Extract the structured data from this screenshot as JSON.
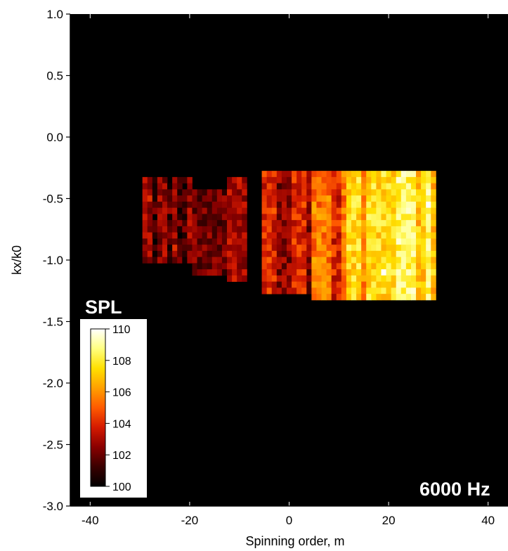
{
  "chart_data": {
    "type": "heatmap",
    "title": "",
    "xlabel": "Spinning order, m",
    "ylabel": "kx/k0",
    "xlim": [
      -44,
      44
    ],
    "ylim": [
      -3.0,
      1.0
    ],
    "x_ticks": [
      "-40",
      "-20",
      "0",
      "20",
      "40"
    ],
    "x_tick_values": [
      -40,
      -20,
      0,
      20,
      40
    ],
    "y_ticks": [
      "1.0",
      "0.5",
      "0.0",
      "-0.5",
      "-1.0",
      "-1.5",
      "-2.0",
      "-2.5",
      "-3.0"
    ],
    "y_tick_values": [
      1.0,
      0.5,
      0.0,
      -0.5,
      -1.0,
      -1.5,
      -2.0,
      -2.5,
      -3.0
    ],
    "annotation": "6000 Hz",
    "colorbar": {
      "title": "SPL",
      "min": 100,
      "max": 110,
      "ticks": [
        "110",
        "108",
        "106",
        "104",
        "102",
        "100"
      ],
      "tick_values": [
        110,
        108,
        106,
        104,
        102,
        100
      ],
      "colormap": [
        "#000000",
        "#3a0000",
        "#8a0000",
        "#d41a00",
        "#ff5a00",
        "#ffa000",
        "#ffe000",
        "#ffff80",
        "#ffffff"
      ]
    },
    "background_value": 100,
    "m_range": [
      -29,
      29
    ],
    "kx_row_range": [
      -0.25,
      -1.35
    ],
    "active_regions": [
      {
        "m_start": -29,
        "m_end": -19,
        "kx_top": -0.35,
        "kx_bottom": -1.05,
        "spl": 102.6
      },
      {
        "m_start": -19,
        "m_end": -12,
        "kx_top": -0.4,
        "kx_bottom": -1.15,
        "spl": 102.0
      },
      {
        "m_start": -12,
        "m_end": -8,
        "kx_top": -0.35,
        "kx_bottom": -1.2,
        "spl": 103.0
      },
      {
        "m_start": -5,
        "m_end": 5,
        "kx_top": -0.3,
        "kx_bottom": -1.3,
        "spl": 104.0
      },
      {
        "m_start": 5,
        "m_end": 12,
        "kx_top": -0.28,
        "kx_bottom": -1.33,
        "spl": 105.5
      },
      {
        "m_start": 12,
        "m_end": 22,
        "kx_top": -0.26,
        "kx_bottom": -1.33,
        "spl": 107.5
      },
      {
        "m_start": 22,
        "m_end": 29,
        "kx_top": -0.26,
        "kx_bottom": -1.33,
        "spl": 108.5
      }
    ],
    "ridges": [
      {
        "from": [
          -29,
          -0.42
        ],
        "to": [
          -22,
          -0.98
        ],
        "spl": 104.2
      },
      {
        "from": [
          -26,
          -0.5
        ],
        "to": [
          -16,
          -1.02
        ],
        "spl": 103.2
      },
      {
        "from": [
          19,
          -1.1
        ],
        "to": [
          28,
          -0.55
        ],
        "spl": 110.0
      }
    ],
    "grid": false
  }
}
